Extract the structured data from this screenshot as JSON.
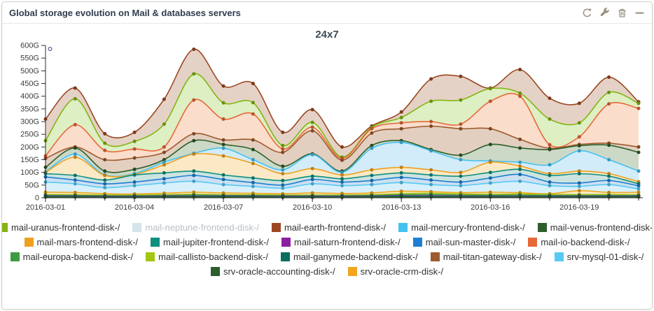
{
  "panel": {
    "title": "Global storage evolution on Mail & databases servers",
    "toolbar": {
      "refresh": "refresh",
      "configure": "configure",
      "delete": "delete",
      "minimize": "minimize"
    }
  },
  "chart_data": {
    "type": "area",
    "stacked": true,
    "title": "24x7",
    "unit": "G",
    "ylim": [
      0,
      600
    ],
    "y_tick_labels": [
      "0",
      "50G",
      "100G",
      "150G",
      "200G",
      "250G",
      "300G",
      "350G",
      "400G",
      "450G",
      "500G",
      "550G",
      "600G"
    ],
    "x": [
      "2016-03-01",
      "2016-03-02",
      "2016-03-03",
      "2016-03-04",
      "2016-03-05",
      "2016-03-06",
      "2016-03-07",
      "2016-03-08",
      "2016-03-09",
      "2016-03-10",
      "2016-03-11",
      "2016-03-12",
      "2016-03-13",
      "2016-03-14",
      "2016-03-15",
      "2016-03-16",
      "2016-03-17",
      "2016-03-18",
      "2016-03-19",
      "2016-03-20",
      "2016-03-21"
    ],
    "x_tick_labels": [
      "2016-03-01",
      "2016-03-04",
      "2016-03-07",
      "2016-03-10",
      "2016-03-13",
      "2016-03-16",
      "2016-03-19"
    ],
    "values_note": "values are cumulative stacked tops in gigabytes, series listed from top of stack to bottom",
    "series": [
      {
        "short": "earth",
        "label": "mail-earth-frontend-disk-/",
        "color": "#9c4722",
        "fill": "#e5d2c6",
        "values": [
          310,
          432,
          252,
          258,
          388,
          585,
          440,
          450,
          258,
          347,
          200,
          283,
          338,
          468,
          478,
          432,
          505,
          392,
          372,
          475,
          378
        ]
      },
      {
        "short": "uranus",
        "label": "mail-uranus-frontend-disk-/",
        "color": "#84b412",
        "fill": "#ddefc3",
        "values": [
          225,
          390,
          215,
          222,
          290,
          488,
          374,
          375,
          206,
          297,
          160,
          278,
          316,
          380,
          385,
          430,
          412,
          310,
          295,
          415,
          372
        ]
      },
      {
        "short": "io",
        "label": "mail-io-backend-disk-/",
        "color": "#e8683a",
        "fill": "#fbddcb",
        "values": [
          165,
          288,
          187,
          192,
          200,
          385,
          310,
          330,
          192,
          278,
          155,
          272,
          295,
          300,
          290,
          380,
          400,
          209,
          240,
          370,
          352
        ]
      },
      {
        "short": "titan",
        "label": "mail-titan-gateway-disk-/",
        "color": "#9c5a2e",
        "fill": "#e3cfc0",
        "values": [
          155,
          200,
          150,
          157,
          179,
          252,
          228,
          228,
          179,
          264,
          148,
          255,
          272,
          282,
          272,
          272,
          230,
          195,
          210,
          215,
          200
        ]
      },
      {
        "short": "venus",
        "label": "mail-venus-frontend-disk-/",
        "color": "#2d5f2b",
        "fill": "#cdd9c7",
        "values": [
          120,
          196,
          105,
          112,
          150,
          225,
          210,
          190,
          124,
          173,
          105,
          206,
          225,
          190,
          168,
          210,
          196,
          190,
          205,
          207,
          179
        ]
      },
      {
        "short": "mercury",
        "label": "mail-mercury-frontend-disk-/",
        "color": "#45c1f0",
        "fill": "#d2ecfa",
        "values": [
          102,
          172,
          90,
          95,
          140,
          175,
          195,
          150,
          110,
          170,
          100,
          195,
          218,
          185,
          150,
          145,
          140,
          130,
          185,
          150,
          105
        ]
      },
      {
        "short": "mars",
        "label": "mail-mars-frontend-disk-/",
        "color": "#f0a01e",
        "fill": "#fbe9c6",
        "values": [
          100,
          160,
          88,
          92,
          130,
          172,
          165,
          135,
          95,
          115,
          90,
          110,
          120,
          110,
          100,
          140,
          125,
          95,
          105,
          95,
          63
        ]
      },
      {
        "short": "jupiter",
        "label": "mail-jupiter-frontend-disk-/",
        "color": "#0e8f80",
        "fill": "#cce4e0",
        "values": [
          95,
          88,
          70,
          90,
          98,
          105,
          90,
          78,
          68,
          85,
          75,
          88,
          98,
          90,
          85,
          100,
          112,
          88,
          95,
          85,
          55
        ]
      },
      {
        "short": "sun",
        "label": "mail-sun-master-disk-/",
        "color": "#1d7fd1",
        "fill": "#cce0f2",
        "values": [
          82,
          70,
          55,
          62,
          75,
          88,
          72,
          60,
          50,
          72,
          62,
          68,
          80,
          70,
          62,
          78,
          92,
          62,
          58,
          68,
          47
        ]
      },
      {
        "short": "mysql",
        "label": "srv-mysql-01-disk-/",
        "color": "#58c9f2",
        "fill": "#d8f0fb",
        "values": [
          62,
          55,
          40,
          48,
          58,
          65,
          52,
          45,
          38,
          55,
          48,
          52,
          60,
          52,
          48,
          58,
          65,
          48,
          45,
          52,
          35
        ]
      },
      {
        "short": "oracle-crm",
        "label": "srv-oracle-crm-disk-/",
        "color": "#f2a51d",
        "fill": "#fbe9c6",
        "values": [
          22,
          21,
          16,
          15,
          18,
          22,
          19,
          18,
          16,
          19,
          17,
          19,
          26,
          24,
          20,
          22,
          20,
          16,
          28,
          21,
          22
        ]
      },
      {
        "short": "callisto",
        "label": "mail-callisto-backend-disk-/",
        "color": "#a3c711",
        "fill": "#e4f0c5",
        "values": [
          13,
          12,
          11,
          11,
          12,
          14,
          12,
          12,
          11,
          11,
          11,
          12,
          16,
          18,
          15,
          14,
          15,
          13,
          13,
          13,
          12
        ]
      },
      {
        "short": "europa",
        "label": "mail-europa-backend-disk-/",
        "color": "#3f9b43",
        "fill": "#d2e7d0",
        "values": [
          10,
          9,
          8,
          8,
          9,
          11,
          9,
          9,
          8,
          8,
          8,
          9,
          12,
          13,
          11,
          10,
          11,
          9,
          9,
          9,
          9
        ]
      },
      {
        "short": "saturn",
        "label": "mail-saturn-frontend-disk-/",
        "color": "#8a1fa0",
        "fill": "#e4cfe9",
        "values": [
          7,
          7,
          6,
          6,
          7,
          7,
          7,
          7,
          6,
          6,
          6,
          7,
          8,
          8,
          7,
          7,
          7,
          7,
          7,
          7,
          7
        ]
      },
      {
        "short": "ganymede",
        "label": "mail-ganymede-backend-disk-/",
        "color": "#0a6e60",
        "fill": "#c8ded9",
        "values": [
          5,
          5,
          4,
          4,
          5,
          5,
          5,
          5,
          4,
          4,
          4,
          5,
          6,
          6,
          5,
          5,
          5,
          5,
          5,
          5,
          5
        ]
      },
      {
        "short": "oracle-accounting",
        "label": "srv-oracle-accounting-disk-/",
        "color": "#2c5e2e",
        "fill": "#cfdecf",
        "values": [
          3,
          3,
          2,
          2,
          3,
          3,
          3,
          3,
          2,
          2,
          2,
          3,
          3,
          3,
          3,
          3,
          3,
          3,
          3,
          3,
          3
        ]
      }
    ],
    "hidden_series": [
      {
        "short": "neptune",
        "label": "mail-neptune-frontend-disk-/",
        "color": "#d4e4ea"
      }
    ],
    "legend_position": "bottom",
    "legend_rows": [
      [
        {
          "label": "mail-uranus-frontend-disk-/",
          "color": "#84b412",
          "enabled": true
        },
        {
          "label": "mail-neptune-frontend-disk-/",
          "color": "#d4e4ea",
          "enabled": false
        },
        {
          "label": "mail-earth-frontend-disk-/",
          "color": "#9c4722",
          "enabled": true
        },
        {
          "label": "mail-mercury-frontend-disk-/",
          "color": "#45c1f0",
          "enabled": true
        },
        {
          "label": "mail-venus-frontend-disk-/",
          "color": "#2d5f2b",
          "enabled": true
        }
      ],
      [
        {
          "label": "mail-mars-frontend-disk-/",
          "color": "#f0a01e",
          "enabled": true
        },
        {
          "label": "mail-jupiter-frontend-disk-/",
          "color": "#0e8f80",
          "enabled": true
        },
        {
          "label": "mail-saturn-frontend-disk-/",
          "color": "#8a1fa0",
          "enabled": true
        },
        {
          "label": "mail-sun-master-disk-/",
          "color": "#1d7fd1",
          "enabled": true
        },
        {
          "label": "mail-io-backend-disk-/",
          "color": "#e8683a",
          "enabled": true
        }
      ],
      [
        {
          "label": "mail-europa-backend-disk-/",
          "color": "#3f9b43",
          "enabled": true
        },
        {
          "label": "mail-callisto-backend-disk-/",
          "color": "#a3c711",
          "enabled": true
        },
        {
          "label": "mail-ganymede-backend-disk-/",
          "color": "#0a6e60",
          "enabled": true
        },
        {
          "label": "mail-titan-gateway-disk-/",
          "color": "#9c5a2e",
          "enabled": true
        },
        {
          "label": "srv-mysql-01-disk-/",
          "color": "#58c9f2",
          "enabled": true
        }
      ],
      [
        {
          "label": "srv-oracle-accounting-disk-/",
          "color": "#2c5e2e",
          "enabled": true
        },
        {
          "label": "srv-oracle-crm-disk-/",
          "color": "#f2a51d",
          "enabled": true
        }
      ]
    ]
  }
}
